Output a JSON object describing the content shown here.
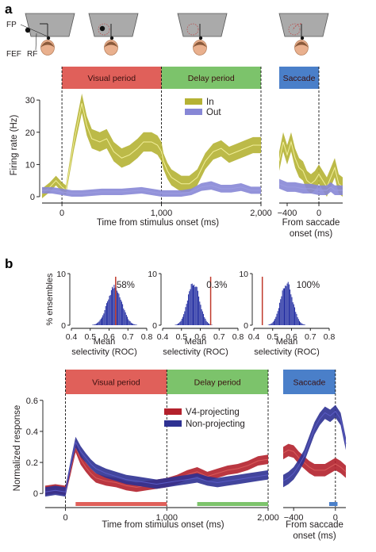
{
  "figure": {
    "panel_a_label": "a",
    "panel_b_label": "b",
    "schematic": {
      "fp_label": "FP",
      "fef_label": "FEF",
      "rf_label": "RF"
    },
    "colors": {
      "in_line": "#f2ef9a",
      "in_band": "#b5b234",
      "out_line": "#9c9ce0",
      "out_band": "#8787d6",
      "v4_line": "#d85a5a",
      "v4_band": "#b3212c",
      "non_line": "#5a5ac4",
      "non_band": "#2e3192",
      "visual": "#e0605a",
      "delay": "#7cc36b",
      "saccade": "#4a7fc9",
      "hist": "#1f2aa0",
      "hist_marker": "#c0392b"
    }
  },
  "chart_data": [
    {
      "id": "a-main",
      "type": "line",
      "ylabel": "Firing rate (Hz)",
      "xlabel": "Time from stimulus onset (ms)",
      "xlim": [
        -200,
        2000
      ],
      "ylim": [
        0,
        32
      ],
      "yticks": [
        0,
        10,
        20,
        30
      ],
      "xticks": [
        0,
        1000,
        2000
      ],
      "xtick_labels": [
        "0",
        "1,000",
        "2,000"
      ],
      "period_bars": [
        {
          "label": "Visual period",
          "from": 0,
          "to": 1000,
          "color": "#e0605a"
        },
        {
          "label": "Delay period",
          "from": 1000,
          "to": 2000,
          "color": "#7cc36b"
        }
      ],
      "dashed_lines": [
        0,
        1000,
        2000
      ],
      "legend": {
        "position": "top-right",
        "entries": [
          "In",
          "Out"
        ]
      },
      "series": [
        {
          "name": "In",
          "line": "#f2ef9a",
          "band": "#b5b234",
          "x": [
            -200,
            -120,
            -60,
            0,
            40,
            120,
            200,
            250,
            300,
            380,
            450,
            520,
            600,
            680,
            760,
            820,
            900,
            960,
            1000,
            1020,
            1060,
            1100,
            1150,
            1200,
            1280,
            1360,
            1440,
            1520,
            1600,
            1680,
            1760,
            1840,
            1920,
            2000
          ],
          "y": [
            1,
            3,
            5,
            3,
            2,
            17,
            29,
            22,
            18,
            17,
            18,
            14,
            12,
            13,
            15,
            17,
            17,
            16,
            14,
            11,
            8,
            6,
            5,
            4,
            4,
            6,
            11,
            14,
            15,
            13,
            14,
            15,
            16,
            16
          ],
          "err": [
            1.5,
            1.5,
            1.5,
            1.5,
            1.5,
            2.5,
            3,
            3,
            3,
            3,
            3,
            3,
            3,
            3,
            3,
            3,
            3,
            3,
            3,
            2.5,
            2.5,
            2.5,
            2.5,
            2.5,
            2.5,
            2.5,
            2.5,
            2.5,
            2.5,
            2.5,
            2.5,
            2.5,
            2.5,
            2.5
          ]
        },
        {
          "name": "Out",
          "line": "#9c9ce0",
          "band": "#8787d6",
          "x": [
            -200,
            -100,
            0,
            100,
            200,
            400,
            600,
            800,
            1000,
            1100,
            1200,
            1300,
            1400,
            1500,
            1600,
            1700,
            1800,
            1900,
            2000
          ],
          "y": [
            2,
            2,
            1.5,
            1,
            1,
            1.5,
            1.5,
            2,
            1,
            1,
            1,
            1.5,
            3,
            3.5,
            2.5,
            2.5,
            3,
            2,
            2
          ],
          "err": [
            1,
            1,
            1,
            1,
            1,
            1,
            1,
            1,
            1,
            1,
            1,
            1,
            1.2,
            1.3,
            1.2,
            1.2,
            1.2,
            1.1,
            1.1
          ]
        }
      ]
    },
    {
      "id": "a-saccade",
      "type": "line",
      "xlabel": "From saccade onset (ms)",
      "xlim": [
        -500,
        300
      ],
      "ylim": [
        0,
        32
      ],
      "xticks": [
        -400,
        0
      ],
      "xtick_labels": [
        "−400",
        "0"
      ],
      "period_bars": [
        {
          "label": "Saccade",
          "from": -500,
          "to": 0,
          "color": "#4a7fc9"
        }
      ],
      "dashed_lines": [
        0
      ],
      "series": [
        {
          "name": "In",
          "line": "#f2ef9a",
          "band": "#b5b234",
          "x": [
            -500,
            -450,
            -400,
            -350,
            -300,
            -250,
            -200,
            -150,
            -100,
            -50,
            0,
            50,
            100,
            150,
            200,
            250,
            300
          ],
          "y": [
            11,
            17,
            13,
            17,
            12,
            9,
            8,
            5,
            4,
            5,
            7,
            5,
            3,
            6,
            9,
            4,
            3
          ],
          "err": [
            3,
            3,
            3,
            3,
            3,
            3,
            3,
            3,
            3,
            3,
            3,
            3,
            3,
            3,
            3,
            3,
            3
          ]
        },
        {
          "name": "Out",
          "line": "#9c9ce0",
          "band": "#8787d6",
          "x": [
            -500,
            -400,
            -300,
            -200,
            -100,
            0,
            100,
            150,
            200,
            250,
            300
          ],
          "y": [
            4,
            3,
            3,
            2.5,
            2.5,
            2,
            2,
            3,
            2,
            2,
            2
          ],
          "err": [
            1.5,
            1.5,
            1.5,
            1.5,
            1.5,
            1.5,
            1.5,
            1.5,
            1.5,
            1.5,
            1.5
          ]
        }
      ]
    },
    {
      "id": "b-hist-1",
      "type": "bar",
      "ylabel": "% ensembles",
      "xlabel": "Mean selectivity (ROC)",
      "xlabel_lines": [
        "Mean",
        "selectivity (ROC)"
      ],
      "xlim": [
        0.4,
        0.8
      ],
      "ylim": [
        0,
        10
      ],
      "xticks": [
        0.4,
        0.5,
        0.6,
        0.7,
        0.8
      ],
      "yticks": [
        0,
        10
      ],
      "distribution": {
        "mean": 0.63,
        "sd": 0.038,
        "peak": 7.5
      },
      "marker": 0.635,
      "annotation": "58%"
    },
    {
      "id": "b-hist-2",
      "type": "bar",
      "xlabel": "Mean selectivity (ROC)",
      "xlabel_lines": [
        "Mean",
        "selectivity (ROC)"
      ],
      "xlim": [
        0.4,
        0.8
      ],
      "ylim": [
        0,
        10
      ],
      "xticks": [
        0.4,
        0.5,
        0.6,
        0.7,
        0.8
      ],
      "yticks": [
        0,
        10
      ],
      "distribution": {
        "mean": 0.565,
        "sd": 0.032,
        "peak": 8
      },
      "marker": 0.655,
      "annotation": "0.3%"
    },
    {
      "id": "b-hist-3",
      "type": "bar",
      "xlabel": "Mean selectivity (ROC)",
      "xlabel_lines": [
        "Mean",
        "selectivity (ROC)"
      ],
      "xlim": [
        0.4,
        0.8
      ],
      "ylim": [
        0,
        10
      ],
      "xticks": [
        0.4,
        0.5,
        0.6,
        0.7,
        0.8
      ],
      "yticks": [
        0,
        10
      ],
      "distribution": {
        "mean": 0.575,
        "sd": 0.032,
        "peak": 8
      },
      "marker": 0.445,
      "annotation": "100%"
    },
    {
      "id": "b-main",
      "type": "line",
      "ylabel": "Normalized response",
      "xlabel": "Time from stimulus onset (ms)",
      "xlim": [
        -200,
        2000
      ],
      "ylim": [
        -0.05,
        0.65
      ],
      "yticks": [
        0,
        0.2,
        0.4,
        0.6
      ],
      "ytick_labels": [
        "0",
        "0.2",
        "0.4",
        "0.6"
      ],
      "xticks": [
        0,
        1000,
        2000
      ],
      "xtick_labels": [
        "0",
        "1,000",
        "2,000"
      ],
      "period_bars": [
        {
          "label": "Visual period",
          "from": 0,
          "to": 1000,
          "color": "#e0605a"
        },
        {
          "label": "Delay period",
          "from": 1000,
          "to": 2000,
          "color": "#7cc36b"
        }
      ],
      "dashed_lines": [
        0,
        1000,
        2000
      ],
      "significance_bars": [
        {
          "from": 100,
          "to": 1000,
          "color": "#e0605a"
        },
        {
          "from": 1300,
          "to": 2000,
          "color": "#7cc36b"
        }
      ],
      "legend": {
        "position": "center-right",
        "entries": [
          "V4-projecting",
          "Non-projecting"
        ]
      },
      "series": [
        {
          "name": "V4-projecting",
          "line": "#d85a5a",
          "band": "#b3212c",
          "x": [
            -200,
            -100,
            0,
            50,
            100,
            150,
            200,
            250,
            300,
            400,
            500,
            600,
            700,
            800,
            900,
            1000,
            1100,
            1200,
            1300,
            1400,
            1500,
            1600,
            1700,
            1800,
            1900,
            2000
          ],
          "y": [
            0.02,
            0.03,
            0.02,
            0.15,
            0.3,
            0.22,
            0.17,
            0.13,
            0.1,
            0.08,
            0.07,
            0.05,
            0.04,
            0.05,
            0.06,
            0.07,
            0.09,
            0.12,
            0.14,
            0.11,
            0.13,
            0.15,
            0.16,
            0.18,
            0.21,
            0.22
          ],
          "err": [
            0.03,
            0.03,
            0.03,
            0.03,
            0.035,
            0.035,
            0.03,
            0.03,
            0.03,
            0.03,
            0.03,
            0.03,
            0.03,
            0.03,
            0.03,
            0.03,
            0.03,
            0.03,
            0.03,
            0.03,
            0.03,
            0.03,
            0.03,
            0.03,
            0.03,
            0.03
          ]
        },
        {
          "name": "Non-projecting",
          "line": "#5a5ac4",
          "band": "#2e3192",
          "x": [
            -200,
            -100,
            0,
            50,
            100,
            150,
            200,
            250,
            300,
            400,
            500,
            600,
            700,
            800,
            900,
            1000,
            1100,
            1200,
            1300,
            1400,
            1500,
            1600,
            1700,
            1800,
            1900,
            2000
          ],
          "y": [
            0.01,
            0.02,
            0.01,
            0.18,
            0.33,
            0.27,
            0.23,
            0.19,
            0.16,
            0.13,
            0.11,
            0.09,
            0.08,
            0.07,
            0.06,
            0.07,
            0.08,
            0.09,
            0.1,
            0.08,
            0.07,
            0.08,
            0.09,
            0.1,
            0.11,
            0.12
          ],
          "err": [
            0.03,
            0.03,
            0.03,
            0.03,
            0.035,
            0.035,
            0.03,
            0.03,
            0.03,
            0.03,
            0.03,
            0.03,
            0.03,
            0.03,
            0.03,
            0.03,
            0.03,
            0.03,
            0.03,
            0.03,
            0.03,
            0.03,
            0.03,
            0.03,
            0.03,
            0.03
          ]
        }
      ]
    },
    {
      "id": "b-saccade",
      "type": "line",
      "xlabel": "From saccade onset (ms)",
      "xlim": [
        -500,
        100
      ],
      "ylim": [
        -0.05,
        0.65
      ],
      "xticks": [
        -400,
        0
      ],
      "xtick_labels": [
        "−400",
        "0"
      ],
      "period_bars": [
        {
          "label": "Saccade",
          "from": -500,
          "to": 0,
          "color": "#4a7fc9"
        }
      ],
      "dashed_lines": [
        0
      ],
      "significance_bars": [
        {
          "from": -60,
          "to": 20,
          "color": "#4a7fc9"
        }
      ],
      "series": [
        {
          "name": "V4-projecting",
          "line": "#d85a5a",
          "band": "#b3212c",
          "x": [
            -500,
            -450,
            -400,
            -350,
            -300,
            -250,
            -200,
            -150,
            -100,
            -50,
            0,
            50,
            100
          ],
          "y": [
            0.26,
            0.28,
            0.27,
            0.23,
            0.2,
            0.17,
            0.15,
            0.15,
            0.15,
            0.17,
            0.19,
            0.17,
            0.14
          ],
          "err": [
            0.04,
            0.04,
            0.04,
            0.04,
            0.04,
            0.04,
            0.04,
            0.04,
            0.04,
            0.04,
            0.04,
            0.04,
            0.04
          ]
        },
        {
          "name": "Non-projecting",
          "line": "#5a5ac4",
          "band": "#2e3192",
          "x": [
            -500,
            -450,
            -400,
            -350,
            -300,
            -250,
            -200,
            -150,
            -100,
            -50,
            0,
            50,
            100
          ],
          "y": [
            0.08,
            0.1,
            0.13,
            0.18,
            0.24,
            0.33,
            0.42,
            0.48,
            0.52,
            0.5,
            0.53,
            0.48,
            0.32
          ],
          "err": [
            0.04,
            0.04,
            0.04,
            0.04,
            0.04,
            0.04,
            0.04,
            0.04,
            0.04,
            0.04,
            0.04,
            0.04,
            0.04
          ]
        }
      ]
    }
  ]
}
